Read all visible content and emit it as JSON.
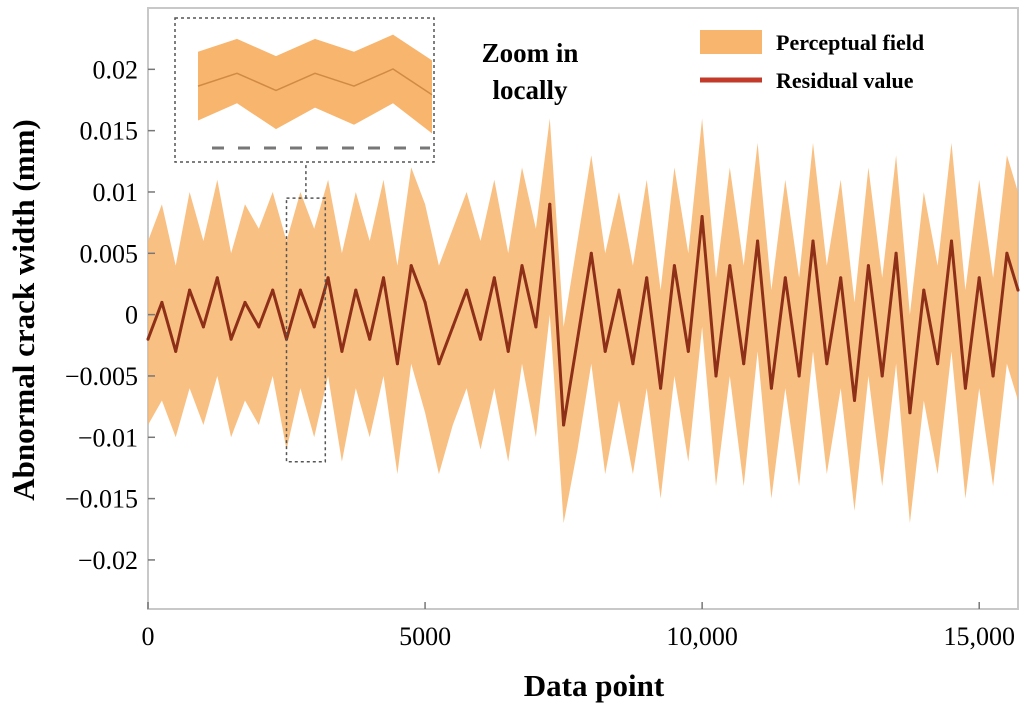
{
  "chart_data": {
    "type": "area",
    "title": "",
    "xlabel": "Data point",
    "ylabel": "Abnormal crack width (mm)",
    "xlim": [
      0,
      15700
    ],
    "ylim": [
      -0.024,
      0.025
    ],
    "x_ticks": [
      {
        "value": 0,
        "label": "0"
      },
      {
        "value": 5000,
        "label": "5000"
      },
      {
        "value": 10000,
        "label": "10,000"
      },
      {
        "value": 15000,
        "label": "15,000"
      }
    ],
    "y_ticks": [
      {
        "value": 0.02,
        "label": "0.02"
      },
      {
        "value": 0.015,
        "label": "0.015"
      },
      {
        "value": 0.01,
        "label": "0.01"
      },
      {
        "value": 0.005,
        "label": "0.005"
      },
      {
        "value": 0,
        "label": "0"
      },
      {
        "value": -0.005,
        "label": "−0.005"
      },
      {
        "value": -0.01,
        "label": "−0.01"
      },
      {
        "value": -0.015,
        "label": "−0.015"
      },
      {
        "value": -0.02,
        "label": "−0.02"
      }
    ],
    "grid": false,
    "legend": {
      "placement": "top-right",
      "entries": [
        {
          "label": "Perceptual field",
          "kind": "band",
          "color": "#f8b56d"
        },
        {
          "label": "Residual value",
          "kind": "line",
          "color": "#c23b2a"
        }
      ]
    },
    "annotation": {
      "line1": "Zoom in",
      "line2": "locally"
    },
    "zoom_region": {
      "x_range": [
        2500,
        3200
      ],
      "y_range": [
        -0.012,
        0.0095
      ]
    },
    "series": [
      {
        "name": "Residual value",
        "color": "#8e2f18",
        "x": [
          0,
          250,
          500,
          750,
          1000,
          1250,
          1500,
          1750,
          2000,
          2250,
          2500,
          2750,
          3000,
          3250,
          3500,
          3750,
          4000,
          4250,
          4500,
          4750,
          5000,
          5250,
          5500,
          5750,
          6000,
          6250,
          6500,
          6750,
          7000,
          7250,
          7500,
          7750,
          8000,
          8250,
          8500,
          8750,
          9000,
          9250,
          9500,
          9750,
          10000,
          10250,
          10500,
          10750,
          11000,
          11250,
          11500,
          11750,
          12000,
          12250,
          12500,
          12750,
          13000,
          13250,
          13500,
          13750,
          14000,
          14250,
          14500,
          14750,
          15000,
          15250,
          15500,
          15700
        ],
        "y": [
          -0.002,
          0.001,
          -0.003,
          0.002,
          -0.001,
          0.003,
          -0.002,
          0.001,
          -0.001,
          0.002,
          -0.002,
          0.002,
          -0.001,
          0.003,
          -0.003,
          0.002,
          -0.002,
          0.003,
          -0.004,
          0.004,
          0.001,
          -0.004,
          -0.001,
          0.002,
          -0.002,
          0.003,
          -0.003,
          0.004,
          -0.001,
          0.009,
          -0.009,
          -0.002,
          0.005,
          -0.003,
          0.002,
          -0.004,
          0.003,
          -0.006,
          0.004,
          -0.003,
          0.008,
          -0.005,
          0.004,
          -0.004,
          0.006,
          -0.006,
          0.003,
          -0.005,
          0.006,
          -0.004,
          0.003,
          -0.007,
          0.004,
          -0.005,
          0.005,
          -0.008,
          0.002,
          -0.004,
          0.006,
          -0.006,
          0.003,
          -0.005,
          0.005,
          0.002
        ],
        "band_lower": [
          -0.009,
          -0.007,
          -0.01,
          -0.006,
          -0.009,
          -0.005,
          -0.01,
          -0.007,
          -0.009,
          -0.005,
          -0.011,
          -0.006,
          -0.01,
          -0.005,
          -0.012,
          -0.006,
          -0.01,
          -0.005,
          -0.013,
          -0.004,
          -0.008,
          -0.013,
          -0.009,
          -0.006,
          -0.011,
          -0.006,
          -0.012,
          -0.004,
          -0.01,
          0.0,
          -0.017,
          -0.011,
          -0.004,
          -0.013,
          -0.007,
          -0.013,
          -0.006,
          -0.015,
          -0.005,
          -0.012,
          -0.001,
          -0.014,
          -0.005,
          -0.014,
          -0.003,
          -0.015,
          -0.006,
          -0.014,
          -0.003,
          -0.013,
          -0.006,
          -0.016,
          -0.005,
          -0.014,
          -0.004,
          -0.017,
          -0.007,
          -0.013,
          -0.003,
          -0.015,
          -0.006,
          -0.014,
          -0.004,
          -0.007
        ],
        "band_upper": [
          0.006,
          0.009,
          0.004,
          0.01,
          0.006,
          0.011,
          0.005,
          0.009,
          0.007,
          0.01,
          0.006,
          0.01,
          0.007,
          0.011,
          0.005,
          0.01,
          0.006,
          0.011,
          0.004,
          0.012,
          0.009,
          0.004,
          0.007,
          0.01,
          0.006,
          0.011,
          0.005,
          0.012,
          0.007,
          0.016,
          -0.001,
          0.006,
          0.013,
          0.005,
          0.01,
          0.004,
          0.011,
          0.002,
          0.012,
          0.005,
          0.016,
          0.003,
          0.012,
          0.004,
          0.014,
          0.002,
          0.011,
          0.003,
          0.014,
          0.004,
          0.011,
          0.001,
          0.012,
          0.003,
          0.013,
          0.0,
          0.01,
          0.004,
          0.014,
          0.002,
          0.011,
          0.003,
          0.013,
          0.01
        ]
      }
    ]
  }
}
